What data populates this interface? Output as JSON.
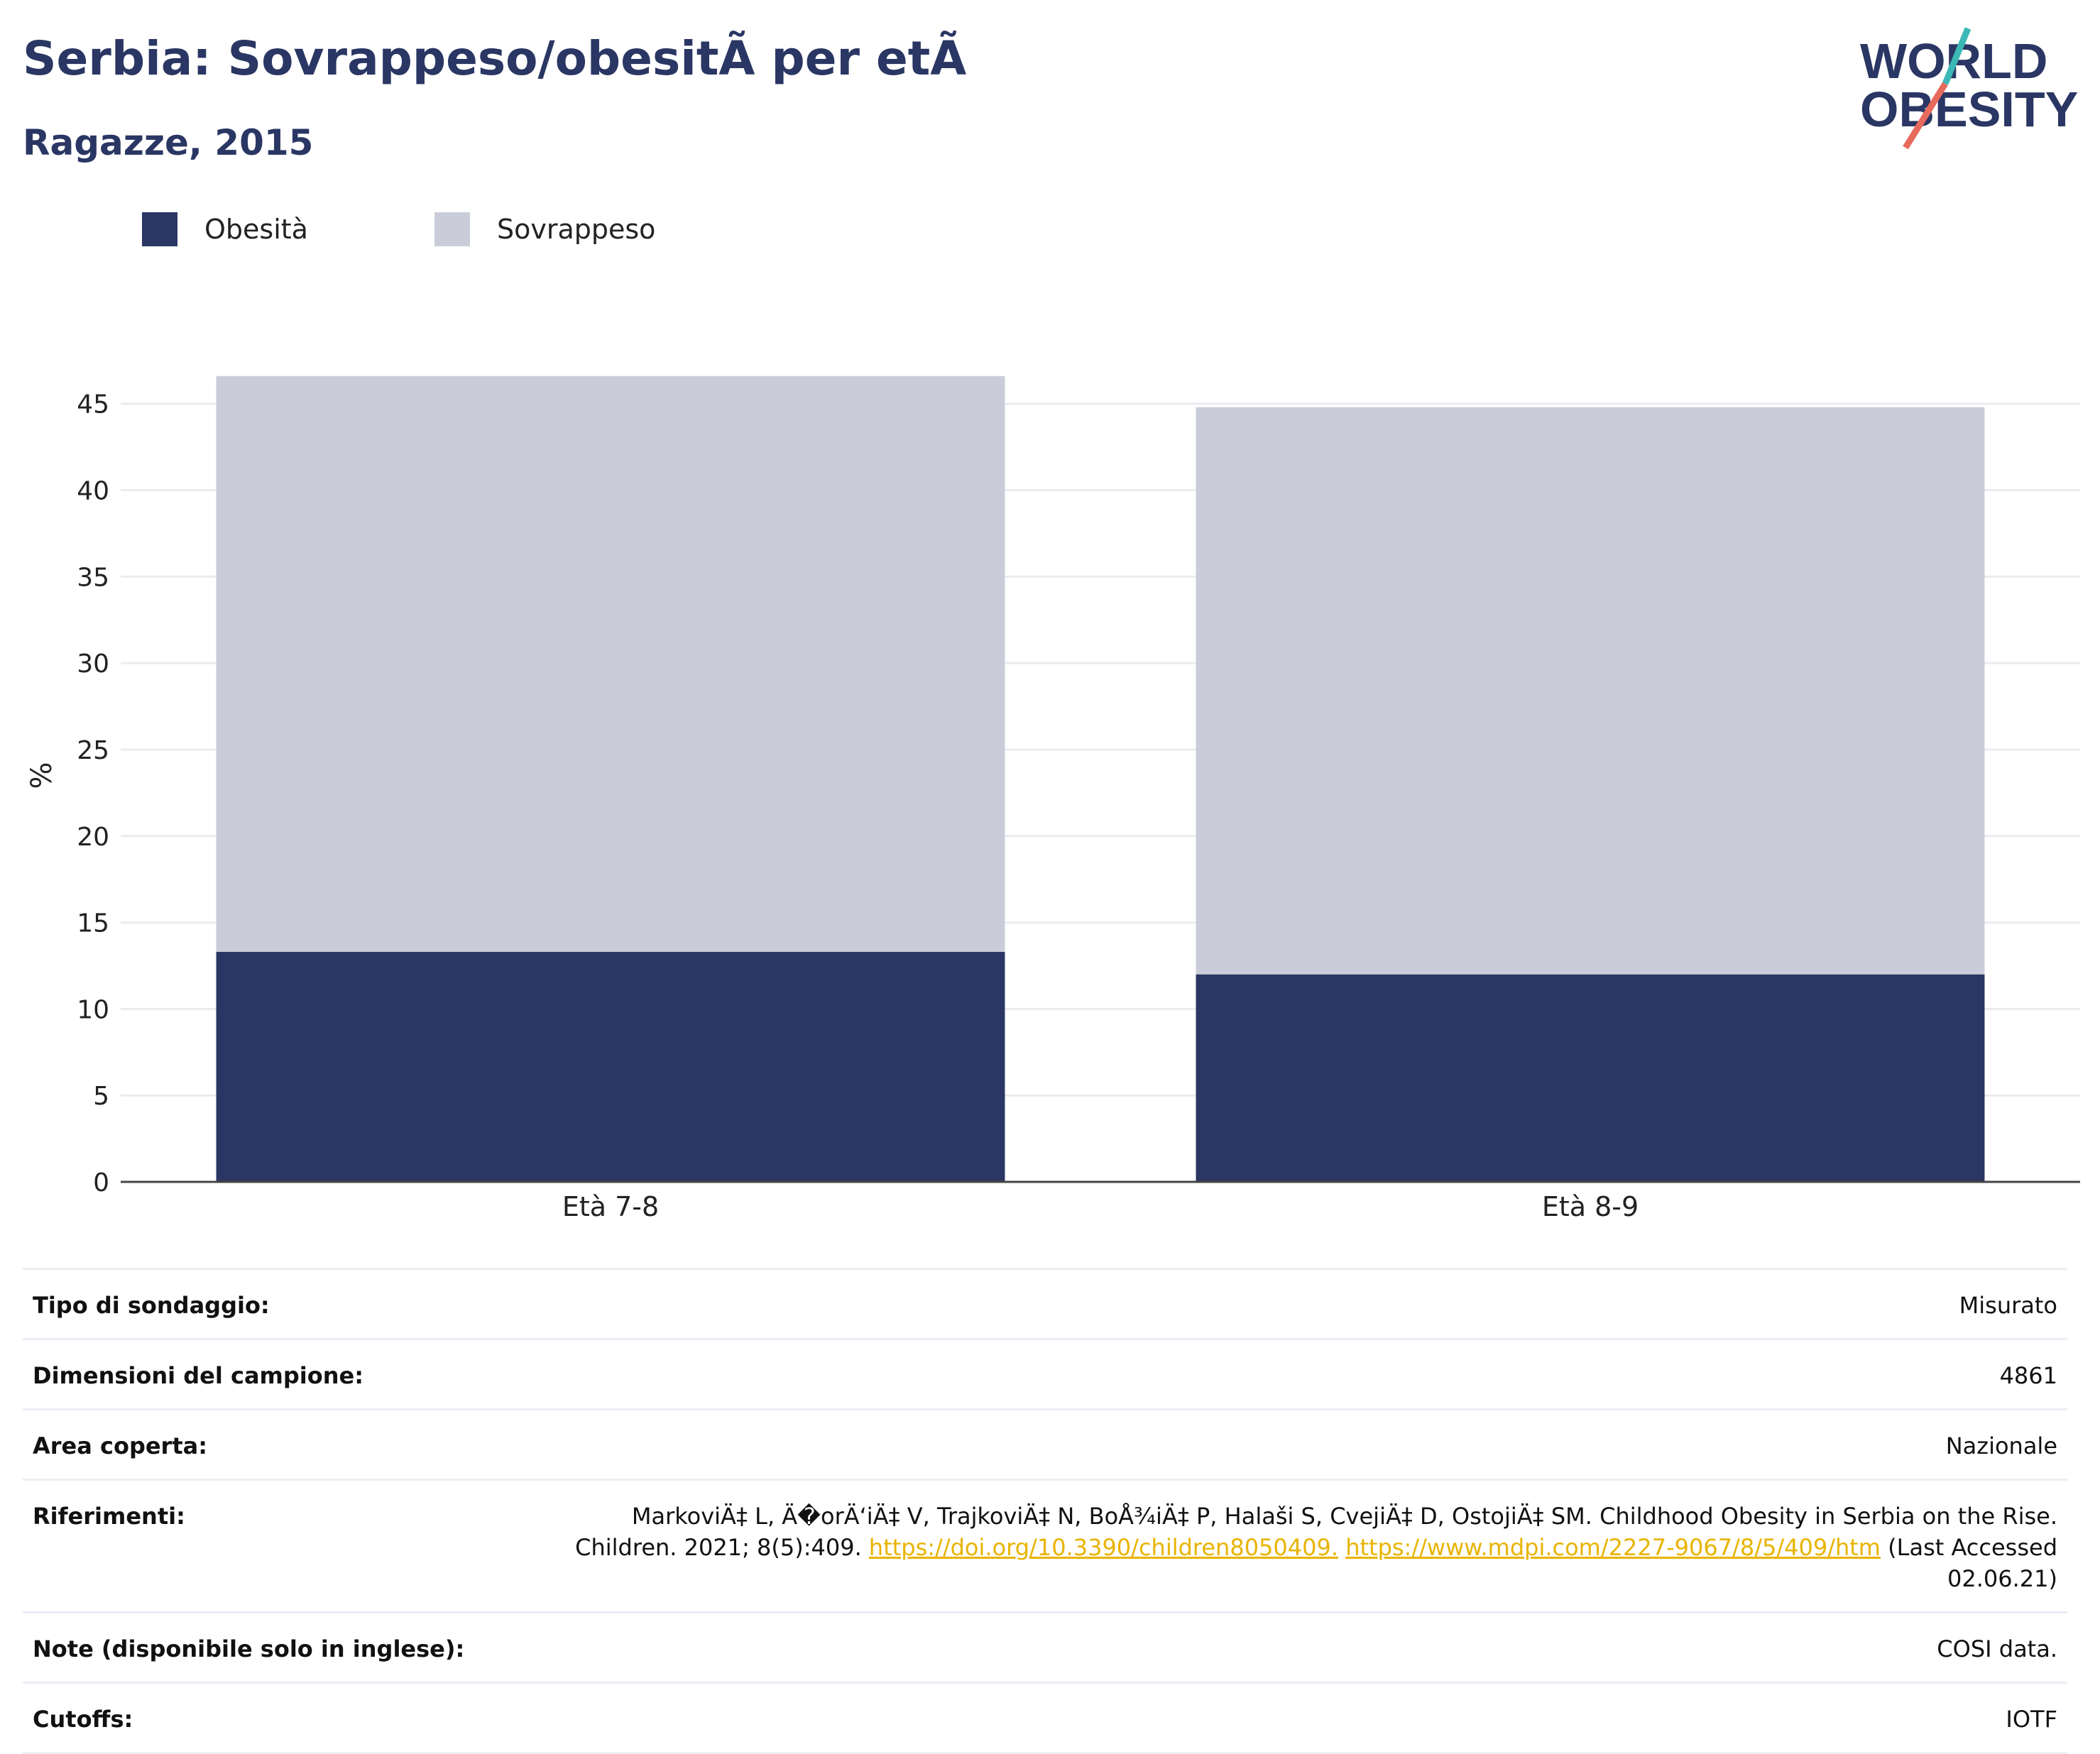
{
  "title": "Serbia: Sovrappeso/obesitÃ  per etÃ ",
  "subtitle": "Ragazze, 2015",
  "logo": {
    "line1": "WORLD",
    "line2": "OBESITY"
  },
  "legend": [
    {
      "label": "Obesità",
      "color": "#2a3663"
    },
    {
      "label": "Sovrappeso",
      "color": "#cacdd9"
    }
  ],
  "chart_data": {
    "type": "bar",
    "stacked": true,
    "categories": [
      "Età 7-8",
      "Età 8-9"
    ],
    "series": [
      {
        "name": "Obesità",
        "values": [
          13.3,
          12.0
        ],
        "color": "#2a3663"
      },
      {
        "name": "Sovrappeso",
        "values": [
          33.3,
          32.8
        ],
        "color": "#cacdd9"
      }
    ],
    "ylabel": "%",
    "ylim": [
      0,
      47
    ],
    "yticks": [
      0,
      5,
      10,
      15,
      20,
      25,
      30,
      35,
      40,
      45
    ],
    "grid": true
  },
  "info": {
    "survey_label": "Tipo di sondaggio:",
    "survey_value": "Misurato",
    "sample_label": "Dimensioni del campione:",
    "sample_value": "4861",
    "area_label": "Area coperta:",
    "area_value": "Nazionale",
    "ref_label": "Riferimenti:",
    "ref_text": "MarkoviÄ‡ L, Ä�orÄ‘iÄ‡ V, TrajkoviÄ‡ N, BoÅ¾iÄ‡ P, Halaši S, CvejiÄ‡ D, OstojiÄ‡ SM. Childhood Obesity in Serbia on the Rise. Children. 2021; 8(5):409.",
    "ref_link1": "https://doi.org/10.3390/children8050409.",
    "ref_link2": "https://www.mdpi.com/2227-9067/8/5/409/htm",
    "ref_tail": "(Last Accessed 02.06.21)",
    "notes_label": "Note (disponibile solo in inglese):",
    "notes_value": "COSI data.",
    "cutoffs_label": "Cutoffs:",
    "cutoffs_value": "IOTF"
  }
}
